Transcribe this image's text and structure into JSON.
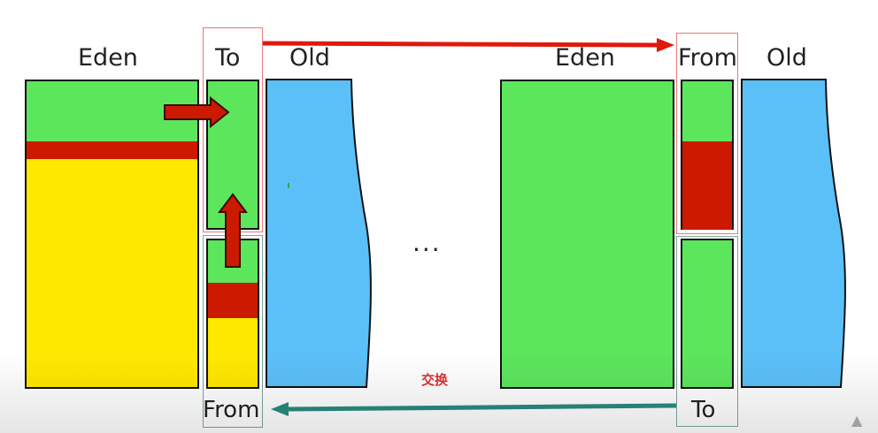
{
  "left_panel": {
    "eden_label": "Eden",
    "to_label": "To",
    "old_label": "Old",
    "from_label": "From"
  },
  "right_panel": {
    "eden_label": "Eden",
    "from_label": "From",
    "old_label": "Old",
    "to_label": "To"
  },
  "ellipsis": "...",
  "swap_label": "交换",
  "colors": {
    "eden_fill": "#5ce65c",
    "survivor_fill": "#5ce65c",
    "live_objects": "#cc1a00",
    "garbage": "#ffe800",
    "old_fill": "#5bc0f8",
    "arrow_red": "#e0190d",
    "arrow_teal": "#2a8a7e"
  }
}
